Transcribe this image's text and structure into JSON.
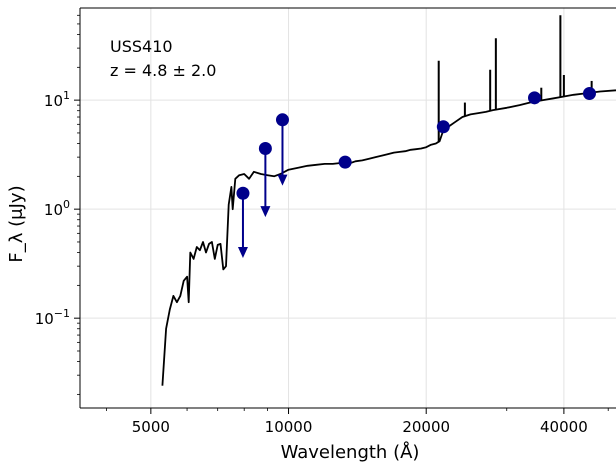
{
  "chart_data": {
    "type": "line",
    "annotations": [
      "USS410",
      "z = 4.8 ± 2.0"
    ],
    "xlabel": "Wavelength (Å)",
    "ylabel": "F_λ (μJy)",
    "x_scale": "log",
    "y_scale": "log",
    "xlim": [
      3500,
      52000
    ],
    "ylim": [
      0.015,
      70
    ],
    "grid": true,
    "x_ticks": [
      {
        "value": 5000,
        "label": "5000"
      },
      {
        "value": 10000,
        "label": "10000"
      },
      {
        "value": 20000,
        "label": "20000"
      },
      {
        "value": 40000,
        "label": "40000"
      }
    ],
    "y_ticks": [
      {
        "value": 0.1,
        "base": "10",
        "exp": "−1"
      },
      {
        "value": 1,
        "base": "10",
        "exp": "0"
      },
      {
        "value": 10,
        "base": "10",
        "exp": "1"
      }
    ],
    "colors": {
      "sed_line": "#000000",
      "photometry": "#00008b",
      "grid": "#e3e3e3"
    },
    "series": [
      {
        "type": "line",
        "points": [
          [
            5300,
            0.024
          ],
          [
            5400,
            0.08
          ],
          [
            5500,
            0.12
          ],
          [
            5600,
            0.16
          ],
          [
            5700,
            0.14
          ],
          [
            5800,
            0.16
          ],
          [
            5900,
            0.22
          ],
          [
            6000,
            0.24
          ],
          [
            6050,
            0.14
          ],
          [
            6100,
            0.4
          ],
          [
            6200,
            0.35
          ],
          [
            6300,
            0.45
          ],
          [
            6400,
            0.42
          ],
          [
            6500,
            0.5
          ],
          [
            6600,
            0.4
          ],
          [
            6700,
            0.48
          ],
          [
            6800,
            0.5
          ],
          [
            6900,
            0.35
          ],
          [
            7000,
            0.47
          ],
          [
            7100,
            0.48
          ],
          [
            7200,
            0.28
          ],
          [
            7300,
            0.3
          ],
          [
            7400,
            1.1
          ],
          [
            7500,
            1.6
          ],
          [
            7550,
            1.0
          ],
          [
            7650,
            1.9
          ],
          [
            7800,
            2.05
          ],
          [
            8000,
            2.1
          ],
          [
            8200,
            1.9
          ],
          [
            8400,
            2.2
          ],
          [
            8700,
            2.1
          ],
          [
            9000,
            2.05
          ],
          [
            9300,
            2.0
          ],
          [
            9600,
            2.1
          ],
          [
            10000,
            2.3
          ],
          [
            10500,
            2.4
          ],
          [
            11000,
            2.5
          ],
          [
            11500,
            2.55
          ],
          [
            12000,
            2.6
          ],
          [
            12500,
            2.6
          ],
          [
            13000,
            2.65
          ],
          [
            13500,
            2.6
          ],
          [
            14000,
            2.75
          ],
          [
            14500,
            2.8
          ],
          [
            15000,
            2.9
          ],
          [
            15500,
            3.0
          ],
          [
            16000,
            3.1
          ],
          [
            16500,
            3.2
          ],
          [
            17000,
            3.3
          ],
          [
            17500,
            3.35
          ],
          [
            18000,
            3.4
          ],
          [
            18500,
            3.5
          ],
          [
            19000,
            3.55
          ],
          [
            19500,
            3.6
          ],
          [
            20000,
            3.7
          ],
          [
            20500,
            3.9
          ],
          [
            21000,
            4.0
          ],
          [
            21400,
            4.2
          ],
          [
            21700,
            5.0
          ],
          [
            22000,
            5.4
          ],
          [
            22500,
            5.8
          ],
          [
            23000,
            6.2
          ],
          [
            24000,
            7.0
          ],
          [
            25000,
            7.4
          ],
          [
            26000,
            7.6
          ],
          [
            27000,
            7.8
          ],
          [
            28000,
            8.1
          ],
          [
            30000,
            8.5
          ],
          [
            32000,
            9.0
          ],
          [
            34000,
            9.6
          ],
          [
            36000,
            10.0
          ],
          [
            38000,
            10.4
          ],
          [
            40000,
            10.8
          ],
          [
            42000,
            11.2
          ],
          [
            45000,
            11.6
          ],
          [
            48000,
            12.0
          ],
          [
            52000,
            12.3
          ]
        ],
        "spikes": [
          {
            "x": 21300,
            "y": 23
          },
          {
            "x": 24300,
            "y": 9.5
          },
          {
            "x": 27600,
            "y": 19
          },
          {
            "x": 28400,
            "y": 37
          },
          {
            "x": 35700,
            "y": 13
          },
          {
            "x": 39300,
            "y": 60
          },
          {
            "x": 40000,
            "y": 17
          },
          {
            "x": 46000,
            "y": 15
          }
        ]
      },
      {
        "type": "scatter",
        "points": [
          [
            13300,
            2.7
          ],
          [
            21800,
            5.7
          ],
          [
            34500,
            10.5
          ],
          [
            45500,
            11.5
          ]
        ]
      },
      {
        "type": "upper_limits",
        "points": [
          [
            7950,
            1.4,
            0.38
          ],
          [
            8900,
            3.6,
            0.9
          ],
          [
            9700,
            6.6,
            1.75
          ]
        ]
      }
    ]
  }
}
